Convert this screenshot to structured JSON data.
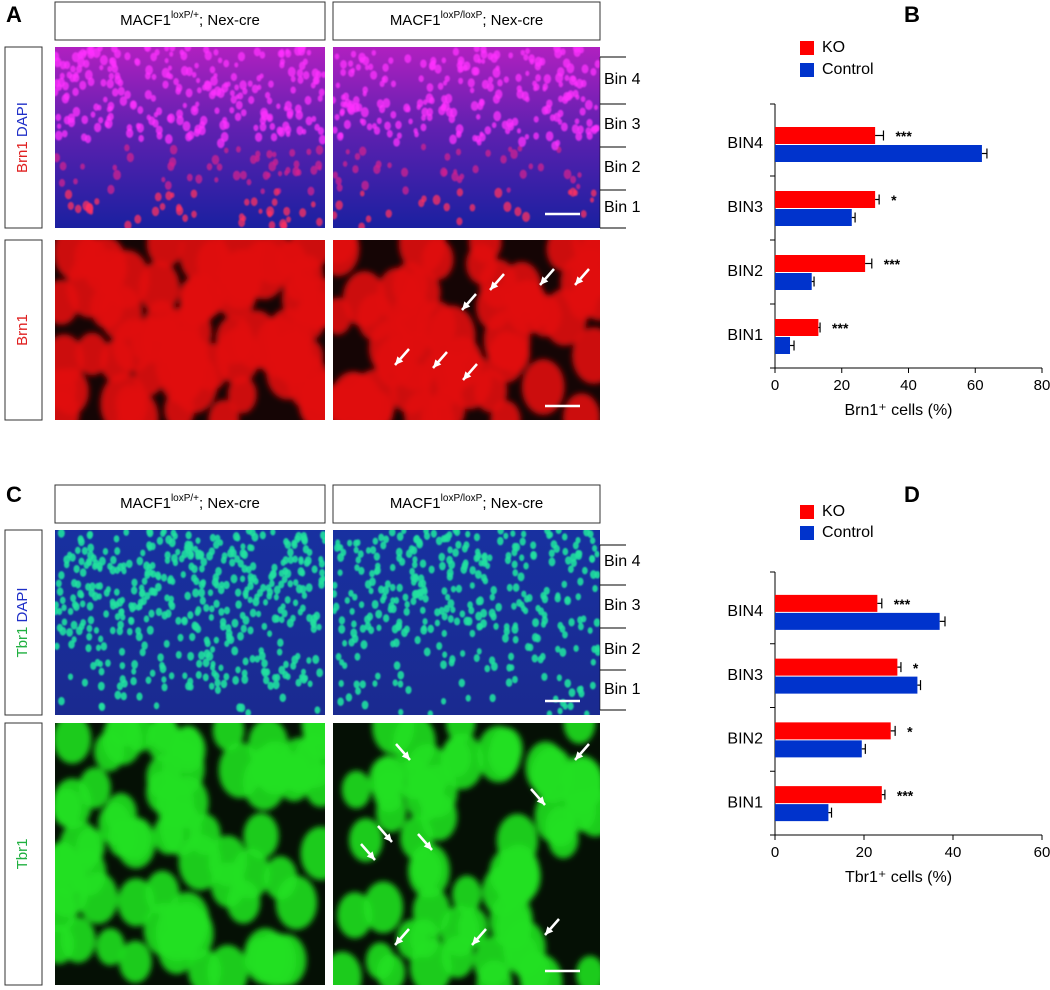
{
  "panels": [
    {
      "letter": "A",
      "headers": [
        {
          "base": "MACF1",
          "sup": "loxP/+",
          "rest": "; Nex-cre"
        },
        {
          "base": "MACF1",
          "sup": "loxP/loxP",
          "rest": "; Nex-cre"
        }
      ],
      "row_labels": [
        [
          {
            "text": "Brn1",
            "color": "#e02020"
          },
          {
            "text": "DAPI",
            "color": "#2030c8"
          }
        ],
        [
          {
            "text": "Brn1",
            "color": "#e02020"
          }
        ]
      ],
      "bins": [
        "Bin 4",
        "Bin 3",
        "Bin 2",
        "Bin 1"
      ]
    },
    {
      "letter": "C",
      "headers": [
        {
          "base": "MACF1",
          "sup": "loxP/+",
          "rest": "; Nex-cre"
        },
        {
          "base": "MACF1",
          "sup": "loxP/loxP",
          "rest": "; Nex-cre"
        }
      ],
      "row_labels": [
        [
          {
            "text": "Tbr1",
            "color": "#20b040"
          },
          {
            "text": "DAPI",
            "color": "#2030c8"
          }
        ],
        [
          {
            "text": "Tbr1",
            "color": "#20b040"
          }
        ]
      ],
      "bins": [
        "Bin 4",
        "Bin 3",
        "Bin 2",
        "Bin 1"
      ]
    }
  ],
  "chart_data": [
    {
      "type": "bar",
      "label": "B",
      "orientation": "horizontal",
      "categories": [
        "BIN4",
        "BIN3",
        "BIN2",
        "BIN1"
      ],
      "series": [
        {
          "name": "KO",
          "color": "#ff0000",
          "values": [
            30,
            30,
            27,
            13
          ],
          "errors": [
            2.5,
            1.2,
            2,
            0.5
          ]
        },
        {
          "name": "Control",
          "color": "#0033cc",
          "values": [
            62,
            23,
            11,
            4.5
          ],
          "errors": [
            1.5,
            1,
            0.7,
            1.2
          ]
        }
      ],
      "annotations": [
        "***",
        "*",
        "***",
        "***"
      ],
      "xlabel": "Brn1⁺ cells (%)",
      "xlim": [
        0,
        80
      ],
      "xticks": [
        0,
        20,
        40,
        60,
        80
      ]
    },
    {
      "type": "bar",
      "label": "D",
      "orientation": "horizontal",
      "categories": [
        "BIN4",
        "BIN3",
        "BIN2",
        "BIN1"
      ],
      "series": [
        {
          "name": "KO",
          "color": "#ff0000",
          "values": [
            23,
            27.5,
            26,
            24
          ],
          "errors": [
            1,
            0.8,
            1,
            0.7
          ]
        },
        {
          "name": "Control",
          "color": "#0033cc",
          "values": [
            37,
            32,
            19.5,
            12
          ],
          "errors": [
            1.2,
            0.7,
            0.8,
            0.7
          ]
        }
      ],
      "annotations": [
        "***",
        "*",
        "*",
        "***"
      ],
      "xlabel": "Tbr1⁺ cells (%)",
      "xlim": [
        0,
        60
      ],
      "xticks": [
        0,
        20,
        40,
        60
      ]
    }
  ]
}
